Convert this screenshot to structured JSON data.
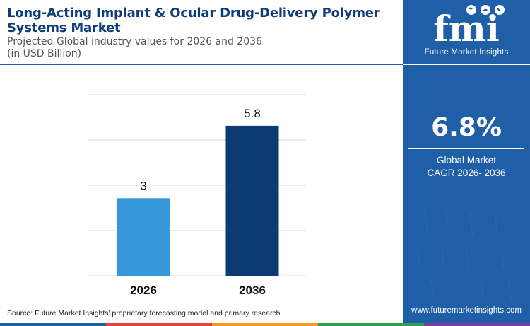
{
  "header": {
    "title": "Long-Acting Implant & Ocular Drug-Delivery Polymer Systems Market",
    "subtitle_line1": "Projected Global industry values for 2026 and 2036",
    "subtitle_line2": "(in USD Billion)"
  },
  "chart_data": {
    "type": "bar",
    "categories": [
      "2026",
      "2036"
    ],
    "values": [
      3,
      5.8
    ],
    "bar_colors": [
      "#3498db",
      "#0e3a73"
    ],
    "ylim": [
      0,
      7
    ],
    "gridlines": [
      0,
      1.75,
      3.5,
      5.25,
      7
    ],
    "grid": true,
    "y_tick_labels_shown": false
  },
  "source": "Source: Future Market Insights’ proprietary forecasting model and primary research",
  "sidebar": {
    "logo_text": "fmi",
    "logo_tagline": "Future Market Insights",
    "cagr_value": "6.8%",
    "cagr_label_line1": "Global Market",
    "cagr_label_line2": "CAGR 2026- 2036",
    "website": "www.futuremarketinsights.com"
  },
  "colors": {
    "title": "#0f3c7a",
    "sidebar_bg": "#1f5fa8",
    "bar_2026": "#3498db",
    "bar_2036": "#0e3a73",
    "bottom_strip": [
      "#1f5fa8",
      "#e8423f",
      "#f59b21",
      "#2e9e4f",
      "#7a3fa0"
    ]
  },
  "icons": [
    "fmi-logo",
    "globe-icons"
  ]
}
